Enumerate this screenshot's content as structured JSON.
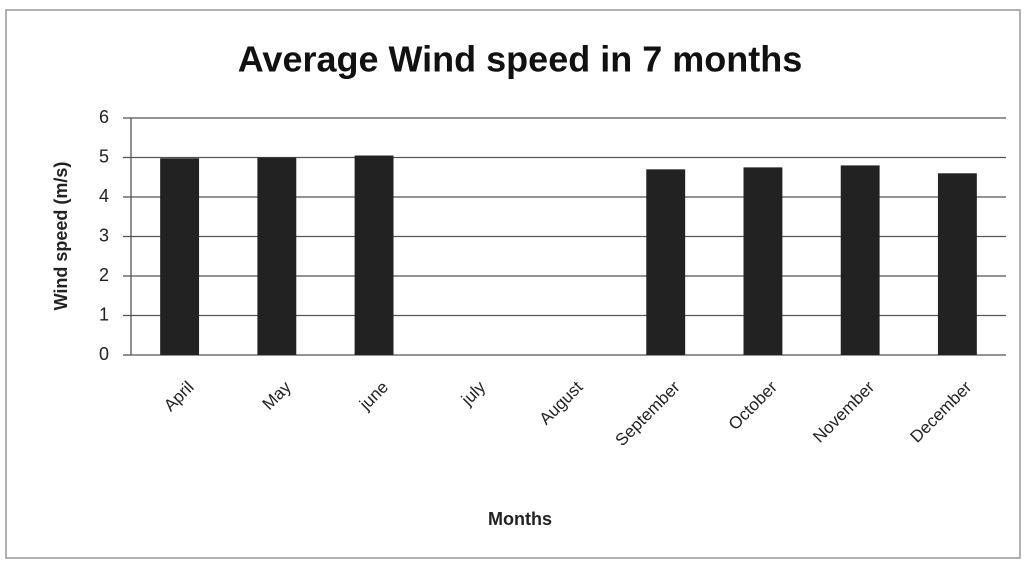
{
  "chart_data": {
    "type": "bar",
    "title": "Average Wind speed in 7 months",
    "x_label": "Months",
    "y_label": "Wind speed (m/s)",
    "categories": [
      "April",
      "May",
      "june",
      "july",
      "August",
      "September",
      "October",
      "November",
      "December"
    ],
    "values": [
      4.98,
      5.0,
      5.05,
      null,
      null,
      4.7,
      4.75,
      4.8,
      4.6
    ],
    "color": "#222222",
    "ylim": [
      0,
      6
    ],
    "yticks": [
      0,
      1,
      2,
      3,
      4,
      5,
      6
    ],
    "grid": true
  }
}
